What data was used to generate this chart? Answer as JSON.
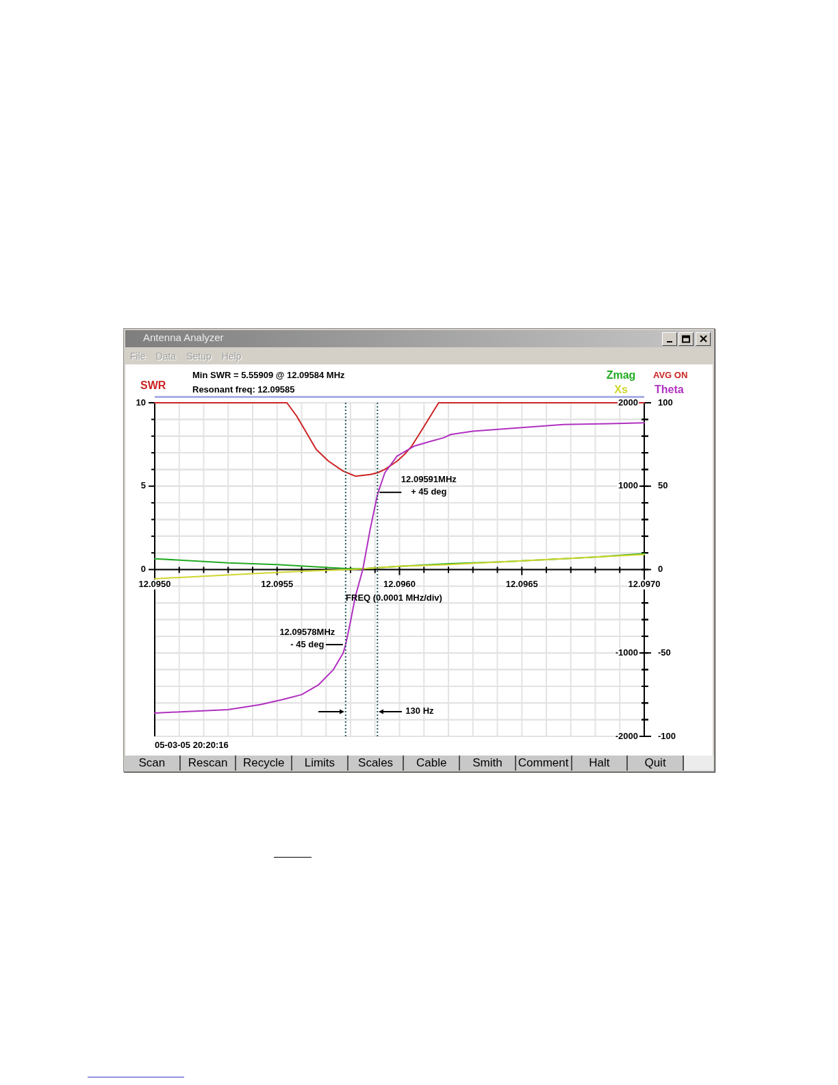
{
  "chart_data": {
    "type": "line",
    "title": "Antenna Analyzer",
    "xlabel": "FREQ (0.0001 MHz/div)",
    "xlim": [
      12.095,
      12.097
    ],
    "xticks": [
      {
        "value": 12.095,
        "label": "12.0950"
      },
      {
        "value": 12.0951,
        "label": null
      },
      {
        "value": 12.0952,
        "label": null
      },
      {
        "value": 12.0953,
        "label": null
      },
      {
        "value": 12.0954,
        "label": null
      },
      {
        "value": 12.0955,
        "label": "12.0955"
      },
      {
        "value": 12.0956,
        "label": null
      },
      {
        "value": 12.0957,
        "label": null
      },
      {
        "value": 12.0958,
        "label": null
      },
      {
        "value": 12.0959,
        "label": null
      },
      {
        "value": 12.096,
        "label": "12.0960"
      },
      {
        "value": 12.0961,
        "label": null
      },
      {
        "value": 12.0962,
        "label": null
      },
      {
        "value": 12.0963,
        "label": null
      },
      {
        "value": 12.0964,
        "label": null
      },
      {
        "value": 12.0965,
        "label": "12.0965"
      },
      {
        "value": 12.0966,
        "label": null
      },
      {
        "value": 12.0967,
        "label": null
      },
      {
        "value": 12.0968,
        "label": null
      },
      {
        "value": 12.0969,
        "label": null
      },
      {
        "value": 12.097,
        "label": "12.0970"
      }
    ],
    "ylim": [
      -10,
      10
    ],
    "yticks": [
      0,
      {
        "value": 1,
        "label": null
      },
      {
        "value": 2,
        "label": null
      },
      {
        "value": 3,
        "label": null
      },
      {
        "value": 4,
        "label": null
      },
      5,
      {
        "value": 6,
        "label": null
      },
      {
        "value": 7,
        "label": null
      },
      {
        "value": 8,
        "label": null
      },
      {
        "value": 9,
        "label": null
      },
      10
    ],
    "y2lim": [
      -2000,
      2000
    ],
    "y2ticks": [
      -2000,
      {
        "value": -1800,
        "label": null
      },
      {
        "value": -1600,
        "label": null
      },
      {
        "value": -1400,
        "label": null
      },
      {
        "value": -1200,
        "label": null
      },
      -1000,
      {
        "value": -800,
        "label": null
      },
      {
        "value": -600,
        "label": null
      },
      {
        "value": -400,
        "label": null
      },
      {
        "value": -200,
        "label": null
      },
      {
        "value": 0,
        "label": null
      },
      {
        "value": 200,
        "label": null
      },
      {
        "value": 400,
        "label": null
      },
      {
        "value": 600,
        "label": null
      },
      {
        "value": 800,
        "label": null
      },
      1000,
      {
        "value": 1200,
        "label": null
      },
      {
        "value": 1400,
        "label": null
      },
      {
        "value": 1600,
        "label": null
      },
      {
        "value": 1800,
        "label": null
      },
      2000
    ],
    "y3lim": [
      -100,
      100
    ],
    "y3ticks": [
      -100,
      {
        "value": -90,
        "label": null
      },
      {
        "value": -80,
        "label": null
      },
      {
        "value": -70,
        "label": null
      },
      {
        "value": -60,
        "label": null
      },
      -50,
      {
        "value": -40,
        "label": null
      },
      {
        "value": -30,
        "label": null
      },
      {
        "value": -20,
        "label": null
      },
      {
        "value": -10,
        "label": null
      },
      0,
      {
        "value": 10,
        "label": null
      },
      {
        "value": 20,
        "label": null
      },
      {
        "value": 30,
        "label": null
      },
      {
        "value": 40,
        "label": null
      },
      50,
      {
        "value": 60,
        "label": null
      },
      {
        "value": 70,
        "label": null
      },
      {
        "value": 80,
        "label": null
      },
      {
        "value": 90,
        "label": null
      },
      100
    ],
    "grid": true,
    "legend": "top",
    "series": [
      {
        "name": "SWR",
        "color": "#cc2222",
        "x": [
          12.095,
          12.09554,
          12.09558,
          12.09562,
          12.09566,
          12.09571,
          12.09577,
          12.09582,
          12.09588,
          12.09591,
          12.09594,
          12.09599,
          12.09602,
          12.09605,
          12.09608,
          12.09616,
          12.097
        ],
        "values": [
          10,
          10,
          9.2,
          8.2,
          7.2,
          6.5,
          5.9,
          5.6,
          5.7,
          5.8,
          6,
          6.5,
          6.9,
          7.4,
          8.1,
          10,
          10
        ]
      },
      {
        "name": "Zmag",
        "color": "#22aa22",
        "axis": "y2",
        "x": [
          12.095,
          12.0953,
          12.0955,
          12.09567,
          12.0958,
          12.09585,
          12.096,
          12.0962,
          12.0964,
          12.0966,
          12.0968,
          12.097
        ],
        "values": [
          130,
          80,
          60,
          30,
          10,
          10,
          40,
          70,
          90,
          120,
          150,
          190
        ]
      },
      {
        "name": "Xs",
        "color": "#cfd62e",
        "axis": "y2",
        "x": [
          12.095,
          12.0952,
          12.0954,
          12.0956,
          12.0958,
          12.096,
          12.0962,
          12.0964,
          12.0966,
          12.0968,
          12.097
        ],
        "values": [
          -110,
          -80,
          -50,
          -20,
          0,
          40,
          60,
          90,
          120,
          150,
          180
        ]
      },
      {
        "name": "Theta",
        "color": "#b030c0",
        "axis": "y3",
        "x": [
          12.095,
          12.09515,
          12.0953,
          12.09543,
          12.09552,
          12.0956,
          12.09567,
          12.09573,
          12.09577,
          12.09578,
          12.0958,
          12.09582,
          12.09585,
          12.09588,
          12.09591,
          12.09594,
          12.09599,
          12.09606,
          12.09613,
          12.09618,
          12.09621,
          12.0963,
          12.09649,
          12.09667,
          12.09686,
          12.097
        ],
        "values": [
          -86,
          -85,
          -84,
          -81,
          -78,
          -75,
          -69,
          -60,
          -50,
          -45,
          -31,
          -16,
          0,
          24,
          45,
          58,
          68,
          74,
          77,
          79,
          81,
          83,
          85,
          87,
          87.5,
          88
        ]
      }
    ],
    "ref_lines": [
      {
        "axis": "x",
        "value": 12.09578,
        "label": "12.09578MHz\n- 45 deg",
        "color": "#1f5555",
        "line_style": "dotted"
      },
      {
        "axis": "x",
        "value": 12.09591,
        "label": "12.09591MHz\n+ 45 deg",
        "color": "#1f5555",
        "line_style": "dotted"
      }
    ],
    "annotations": [
      "Min SWR = 5.55909 @ 12.09584 MHz",
      "Resonant freq: 12.09585",
      "AVG ON",
      "130 Hz",
      "05-03-05 20:20:16",
      "File",
      "Data",
      "Setup",
      "Help",
      "Scan",
      "Rescan",
      "Recycle",
      "Limits",
      "Scales",
      "Cable",
      "Smith",
      "Comment",
      "Halt",
      "Quit"
    ]
  }
}
